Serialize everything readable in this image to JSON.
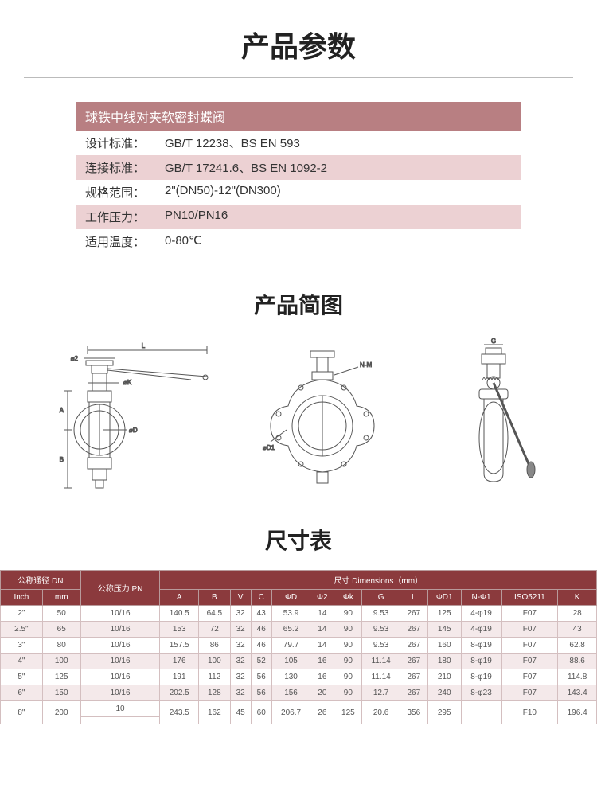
{
  "main_title": "产品参数",
  "spec_header": "球铁中线对夹软密封蝶阀",
  "specs": [
    {
      "label": "设计标准：",
      "value": "GB/T 12238、BS EN 593",
      "alt": false
    },
    {
      "label": "连接标准：",
      "value": "GB/T 17241.6、BS EN 1092-2",
      "alt": true
    },
    {
      "label": "规格范围：",
      "value": "2\"(DN50)-12\"(DN300)",
      "alt": false
    },
    {
      "label": "工作压力：",
      "value": "PN10/PN16",
      "alt": true
    },
    {
      "label": "适用温度：",
      "value": "0-80℃",
      "alt": false
    }
  ],
  "drawing_title": "产品简图",
  "drawing_labels": {
    "L": "L",
    "phi2": "⌀2",
    "phiK": "⌀K",
    "A": "A",
    "phiD": "⌀D",
    "B": "B",
    "phiD1": "⌀D1",
    "NM": "N-M",
    "G": "G"
  },
  "dim_title": "尺寸表",
  "dim_headers": {
    "dn_group": "公称通径 DN",
    "pn": "公称压力 PN",
    "dim_group": "尺寸 Dimensions（mm）",
    "inch": "Inch",
    "mm": "mm",
    "cols": [
      "A",
      "B",
      "V",
      "C",
      "ΦD",
      "Φ2",
      "Φk",
      "G",
      "L",
      "ΦD1",
      "N-Φ1",
      "ISO5211",
      "K"
    ]
  },
  "dim_rows": [
    {
      "inch": "2\"",
      "mm": "50",
      "pn": "10/16",
      "v": [
        "140.5",
        "64.5",
        "32",
        "43",
        "53.9",
        "14",
        "90",
        "9.53",
        "267",
        "125",
        "4-φ19",
        "F07",
        "28"
      ],
      "alt": false
    },
    {
      "inch": "2.5\"",
      "mm": "65",
      "pn": "10/16",
      "v": [
        "153",
        "72",
        "32",
        "46",
        "65.2",
        "14",
        "90",
        "9.53",
        "267",
        "145",
        "4-φ19",
        "F07",
        "43"
      ],
      "alt": true
    },
    {
      "inch": "3\"",
      "mm": "80",
      "pn": "10/16",
      "v": [
        "157.5",
        "86",
        "32",
        "46",
        "79.7",
        "14",
        "90",
        "9.53",
        "267",
        "160",
        "8-φ19",
        "F07",
        "62.8"
      ],
      "alt": false
    },
    {
      "inch": "4\"",
      "mm": "100",
      "pn": "10/16",
      "v": [
        "176",
        "100",
        "32",
        "52",
        "105",
        "16",
        "90",
        "11.14",
        "267",
        "180",
        "8-φ19",
        "F07",
        "88.6"
      ],
      "alt": true
    },
    {
      "inch": "5\"",
      "mm": "125",
      "pn": "10/16",
      "v": [
        "191",
        "112",
        "32",
        "56",
        "130",
        "16",
        "90",
        "11.14",
        "267",
        "210",
        "8-φ19",
        "F07",
        "114.8"
      ],
      "alt": false
    },
    {
      "inch": "6\"",
      "mm": "150",
      "pn": "10/16",
      "v": [
        "202.5",
        "128",
        "32",
        "56",
        "156",
        "20",
        "90",
        "12.7",
        "267",
        "240",
        "8-φ23",
        "F07",
        "143.4"
      ],
      "alt": true
    },
    {
      "inch": "8\"",
      "mm": "200",
      "pn": "10",
      "pn2": "",
      "v": [
        "243.5",
        "162",
        "45",
        "60",
        "206.7",
        "26",
        "125",
        "20.6",
        "356",
        "295",
        "",
        "F10",
        "196.4"
      ],
      "alt": false,
      "split": true
    }
  ],
  "colors": {
    "header_bg": "#8b3a3d",
    "spec_header_bg": "#b87f82",
    "spec_alt_bg": "#ecd1d3",
    "row_alt_bg": "#f4e9ea",
    "border": "#d4bfc0"
  }
}
